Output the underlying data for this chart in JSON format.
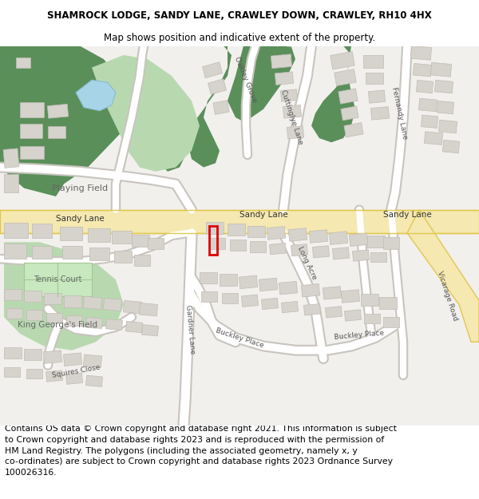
{
  "title": "SHAMROCK LODGE, SANDY LANE, CRAWLEY DOWN, CRAWLEY, RH10 4HX",
  "subtitle": "Map shows position and indicative extent of the property.",
  "footer": "Contains OS data © Crown copyright and database right 2021. This information is subject\nto Crown copyright and database rights 2023 and is reproduced with the permission of\nHM Land Registry. The polygons (including the associated geometry, namely x, y\nco-ordinates) are subject to Crown copyright and database rights 2023 Ordnance Survey\n100026316.",
  "title_fontsize": 8.5,
  "subtitle_fontsize": 8.5,
  "footer_fontsize": 7.8,
  "bg_color": "#ffffff",
  "map_bg": "#f2f0ed",
  "building_color": "#d6d2cc",
  "building_edge": "#c0bbb4",
  "dark_green": "#5a8f5a",
  "light_green": "#b8d9b0",
  "water_color": "#a8d4e8",
  "yellow_road_fill": "#f5e8b0",
  "yellow_road_edge": "#e0c850",
  "white_road": "#ffffff",
  "grey_road_edge": "#c8c4be",
  "plot_red": "#dd0000",
  "label_color": "#555555",
  "label_fontsize": 6.5
}
